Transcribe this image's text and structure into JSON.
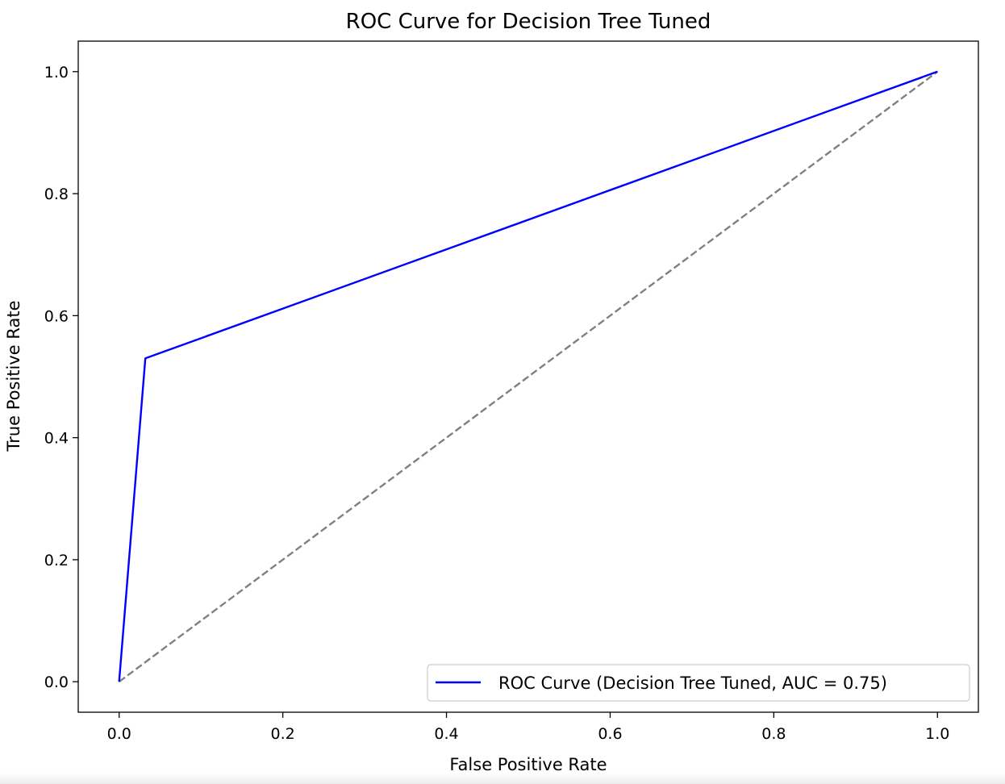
{
  "chart_data": {
    "type": "line",
    "title": "ROC Curve for Decision Tree Tuned",
    "xlabel": "False Positive Rate",
    "ylabel": "True Positive Rate",
    "xlim": [
      -0.05,
      1.05
    ],
    "ylim": [
      -0.05,
      1.05
    ],
    "xticks": [
      0.0,
      0.2,
      0.4,
      0.6,
      0.8,
      1.0
    ],
    "yticks": [
      0.0,
      0.2,
      0.4,
      0.6,
      0.8,
      1.0
    ],
    "xtick_labels": [
      "0.0",
      "0.2",
      "0.4",
      "0.6",
      "0.8",
      "1.0"
    ],
    "ytick_labels": [
      "0.0",
      "0.2",
      "0.4",
      "0.6",
      "0.8",
      "1.0"
    ],
    "grid": false,
    "legend_position": "bottom-right",
    "series": [
      {
        "name": "ROC Curve (Decision Tree Tuned, AUC = 0.75)",
        "x": [
          0.0,
          0.032,
          1.0
        ],
        "y": [
          0.0,
          0.53,
          1.0
        ],
        "color": "#0000ff",
        "style": "solid"
      },
      {
        "x": [
          0.0,
          1.0
        ],
        "y": [
          0.0,
          1.0
        ],
        "color": "#808080",
        "style": "dashed"
      }
    ]
  }
}
